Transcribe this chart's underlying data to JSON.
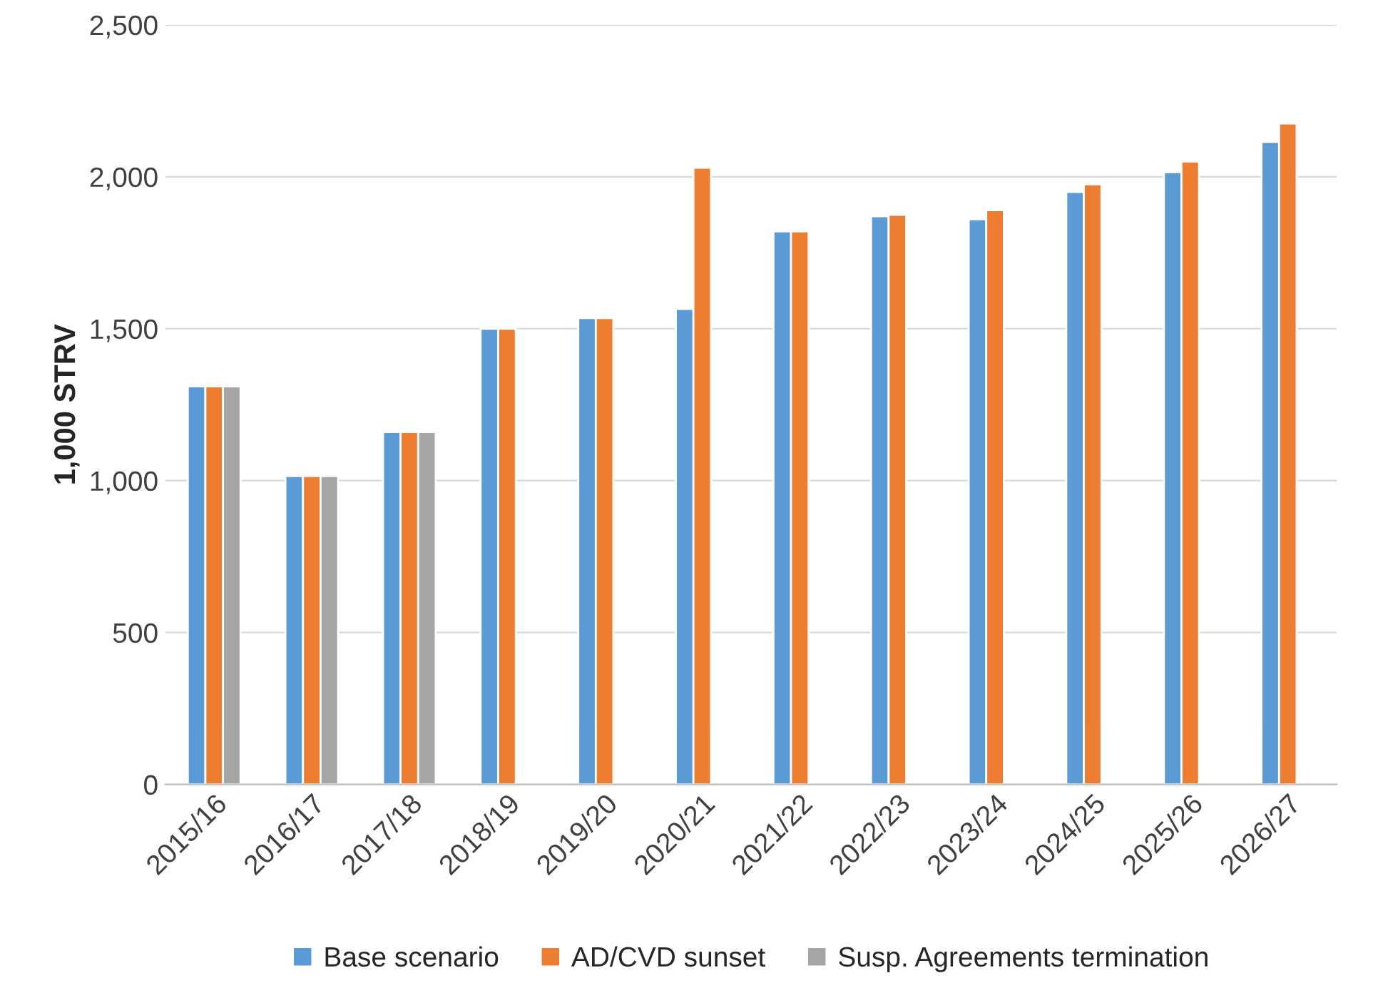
{
  "chart_data": {
    "type": "bar",
    "ylabel": "1,000 STRV",
    "categories": [
      "2015/16",
      "2016/17",
      "2017/18",
      "2018/19",
      "2019/20",
      "2020/21",
      "2021/22",
      "2022/23",
      "2023/24",
      "2024/25",
      "2025/26",
      "2026/27"
    ],
    "series": [
      {
        "name": "Base scenario",
        "color": "#5b9bd5",
        "values": [
          1310,
          1015,
          1160,
          1500,
          1535,
          1565,
          1820,
          1870,
          1860,
          1950,
          2015,
          2115
        ]
      },
      {
        "name": "AD/CVD sunset",
        "color": "#ed7d31",
        "values": [
          1310,
          1015,
          1160,
          1500,
          1535,
          2030,
          1820,
          1875,
          1890,
          1975,
          2050,
          2175
        ]
      },
      {
        "name": "Susp. Agreements termination",
        "color": "#a5a5a5",
        "values": [
          1310,
          1015,
          1160,
          null,
          null,
          null,
          null,
          null,
          null,
          null,
          null,
          null
        ]
      }
    ],
    "ylim": [
      0,
      2500
    ],
    "yticks": [
      0,
      500,
      {
        "value": 1000,
        "label": "1,000"
      },
      {
        "value": 1500,
        "label": "1,500"
      },
      {
        "value": 2000,
        "label": "2,000"
      },
      {
        "value": 2500,
        "label": "2,500"
      }
    ],
    "grid": "y",
    "legend": "bottom"
  }
}
